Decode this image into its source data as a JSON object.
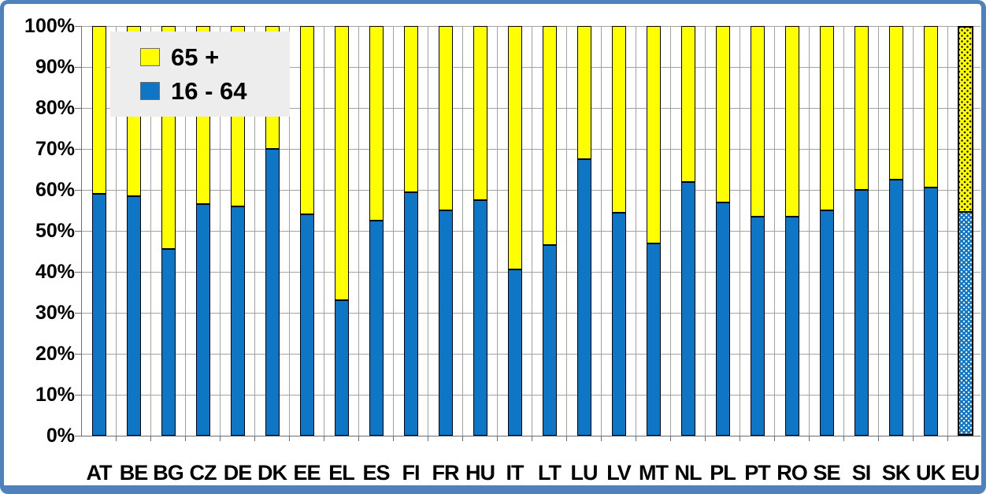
{
  "chart_data": {
    "type": "bar",
    "stacked": true,
    "stack_total": 100,
    "unit": "%",
    "title": "",
    "xlabel": "",
    "ylabel": "",
    "ylim": [
      0,
      100
    ],
    "yticks": [
      100,
      90,
      80,
      70,
      60,
      50,
      40,
      30,
      20,
      10,
      0
    ],
    "ytick_format": "percent",
    "grid": "horizontal-and-vertical-major",
    "legend_position": "top-left-overlay",
    "categories": [
      "AT",
      "BE",
      "BG",
      "CZ",
      "DE",
      "DK",
      "EE",
      "EL",
      "ES",
      "FI",
      "FR",
      "HU",
      "IT",
      "LT",
      "LU",
      "LV",
      "MT",
      "NL",
      "PL",
      "PT",
      "RO",
      "SE",
      "SI",
      "SK",
      "UK",
      "EU"
    ],
    "series": [
      {
        "name": "16 - 64",
        "color": "#0E76C5",
        "position": "bottom",
        "values": [
          59,
          58.5,
          45.5,
          56.5,
          56,
          70,
          54,
          33,
          52.5,
          59.5,
          55,
          57.5,
          40.5,
          46.5,
          67.5,
          54.5,
          47,
          62,
          57,
          53.5,
          53.5,
          55,
          60,
          62.5,
          60.5,
          54.5
        ]
      },
      {
        "name": "65 +",
        "color": "#FFFF00",
        "position": "top",
        "values": [
          41,
          41.5,
          54.5,
          43.5,
          44,
          30,
          46,
          67,
          47.5,
          40.5,
          45,
          42.5,
          59.5,
          53.5,
          32.5,
          45.5,
          53,
          38,
          43,
          46.5,
          46.5,
          45,
          40,
          37.5,
          39.5,
          45.5
        ]
      }
    ],
    "highlight_category": "EU",
    "highlight_style": "dotted-pattern-fill-thick-outline"
  },
  "legend": {
    "items": [
      {
        "label": "65 +",
        "color": "#FFFF00"
      },
      {
        "label": "16 - 64",
        "color": "#0E76C5"
      }
    ]
  },
  "colors": {
    "frame": "#4F81BD",
    "gridline": "#A3A3A3",
    "axis": "#6E6E6E",
    "bar_outline": "#000000",
    "legend_background": "#EDEDED",
    "plot_background": "#FFFFFF"
  }
}
